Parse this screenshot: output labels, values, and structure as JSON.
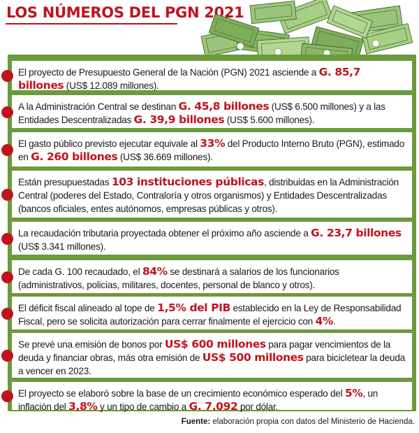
{
  "title": "LOS NÚMEROS DEL PGN 2021",
  "items": [
    {
      "parts": [
        {
          "t": "El proyecto de Presupuesto General de la Nación (PGN) 2021 asciende a "
        },
        {
          "t": "G. 85,7 billones",
          "hl": true
        },
        {
          "t": " (US$ 12.089 millones)."
        }
      ]
    },
    {
      "parts": [
        {
          "t": "A la Administración Central se destinan "
        },
        {
          "t": "G. 45,8 billones",
          "hl": true
        },
        {
          "t": " (US$ 6.500 millones) y a las Entidades Descentralizadas "
        },
        {
          "t": "G. 39,9 billones",
          "hl": true
        },
        {
          "t": " (US$ 5.600 millones)."
        }
      ]
    },
    {
      "parts": [
        {
          "t": "El gasto público previsto ejecutar equivale al "
        },
        {
          "t": "33%",
          "hl": true
        },
        {
          "t": " del Producto Interno Bruto (PGN), estimado en "
        },
        {
          "t": "G. 260 billones",
          "hl": true
        },
        {
          "t": " (US$ 36.669 millones)."
        }
      ]
    },
    {
      "parts": [
        {
          "t": "Están presupuestadas "
        },
        {
          "t": "103 instituciones públicas",
          "hl": true
        },
        {
          "t": ", distribuidas en la Administración Central (poderes del Estado, Contraloría y otros organismos) y Entidades Descentralizadas (bancos oficiales, entes autónomos, empresas públicas y otros)."
        }
      ]
    },
    {
      "parts": [
        {
          "t": "La recaudación tributaria proyectada obtener el próximo año asciende a "
        },
        {
          "t": "G. 23,7 billones",
          "hl": true
        },
        {
          "t": " (US$ 3.341 millones)."
        }
      ]
    },
    {
      "parts": [
        {
          "t": "De cada G. 100 recaudado, el "
        },
        {
          "t": "84%",
          "hl": true
        },
        {
          "t": " se destinará a salarios de los funcionarios (administrativos, policias, militares, docentes, personal de blanco y otros)."
        }
      ]
    },
    {
      "parts": [
        {
          "t": "El déficit fiscal alineado al tope de "
        },
        {
          "t": "1,5% del PIB",
          "hl": true
        },
        {
          "t": " establecido en la Ley de Responsabilidad Fiscal, pero se solicita autorización para cerrar finalmente el ejercicio con "
        },
        {
          "t": "4%",
          "hl": true
        },
        {
          "t": "."
        }
      ]
    },
    {
      "parts": [
        {
          "t": "Se prevé una emisión de bonos por "
        },
        {
          "t": "US$ 600 millones",
          "hl": true
        },
        {
          "t": " para pagar vencimientos de la deuda y financiar obras, más otra emisión de "
        },
        {
          "t": "US$ 500 millones",
          "hl": true
        },
        {
          "t": " para bicicletear la deuda a vencer en 2023."
        }
      ]
    },
    {
      "parts": [
        {
          "t": "El proyecto se elaboró sobre la base de un crecimiento económico esperado del "
        },
        {
          "t": "5%",
          "hl": true
        },
        {
          "t": ", un inflación del "
        },
        {
          "t": "3,8%",
          "hl": true
        },
        {
          "t": " y un tipo de cambio a "
        },
        {
          "t": "G. 7.092",
          "hl": true
        },
        {
          "t": " por dólar."
        }
      ]
    }
  ],
  "source": {
    "label": "Fuente:",
    "text": " elaboración propia con datos del Ministerio de Hacienda."
  },
  "colors": {
    "accent": "#c0141d",
    "panel": "#6c9a3c",
    "money": "#7fae5a"
  },
  "icons": {
    "banner": "money-stack-icon",
    "bullet": "red-dot-icon"
  }
}
